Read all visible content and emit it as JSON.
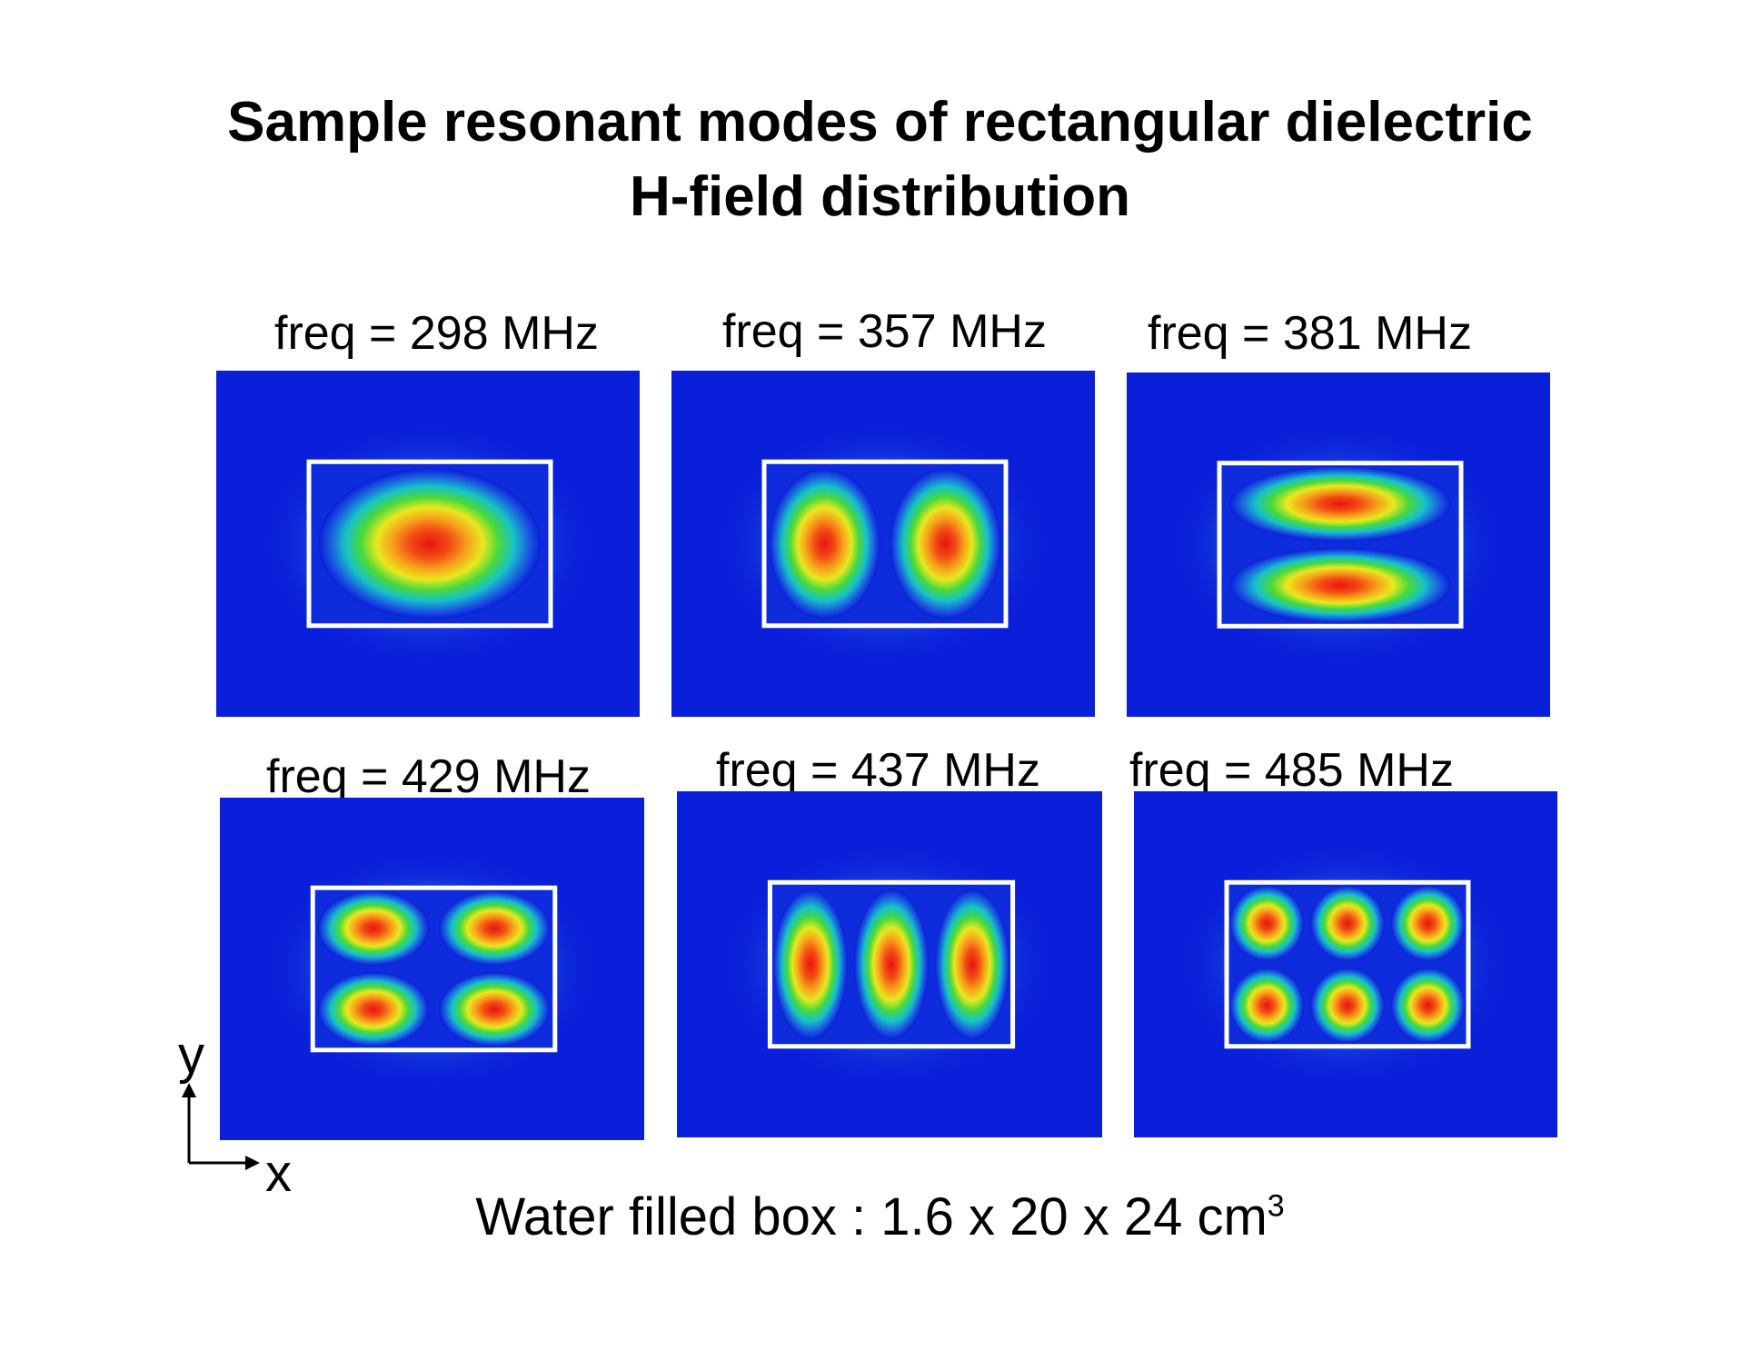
{
  "title": {
    "line1": "Sample resonant modes of rectangular dielectric",
    "line2": "H-field distribution"
  },
  "modes": [
    {
      "label": "freq  = 298 MHz",
      "nx": 1,
      "ny": 1
    },
    {
      "label": "freq  = 357 MHz",
      "nx": 2,
      "ny": 1
    },
    {
      "label": "freq  = 381 MHz",
      "nx": 1,
      "ny": 2
    },
    {
      "label": "freq  = 429 MHz",
      "nx": 2,
      "ny": 2
    },
    {
      "label": "freq  = 437 MHz",
      "nx": 3,
      "ny": 1
    },
    {
      "label": "freq  = 485 MHz",
      "nx": 3,
      "ny": 2
    }
  ],
  "axes": {
    "y_label": "y",
    "x_label": "x"
  },
  "caption": {
    "text": "Water filled box : 1.6 x 20 x 24 cm",
    "superscript": "3"
  },
  "colors": {
    "background_field": "#0a1fd9",
    "box_outline": "#ffffff",
    "hot": "#e8150f"
  }
}
